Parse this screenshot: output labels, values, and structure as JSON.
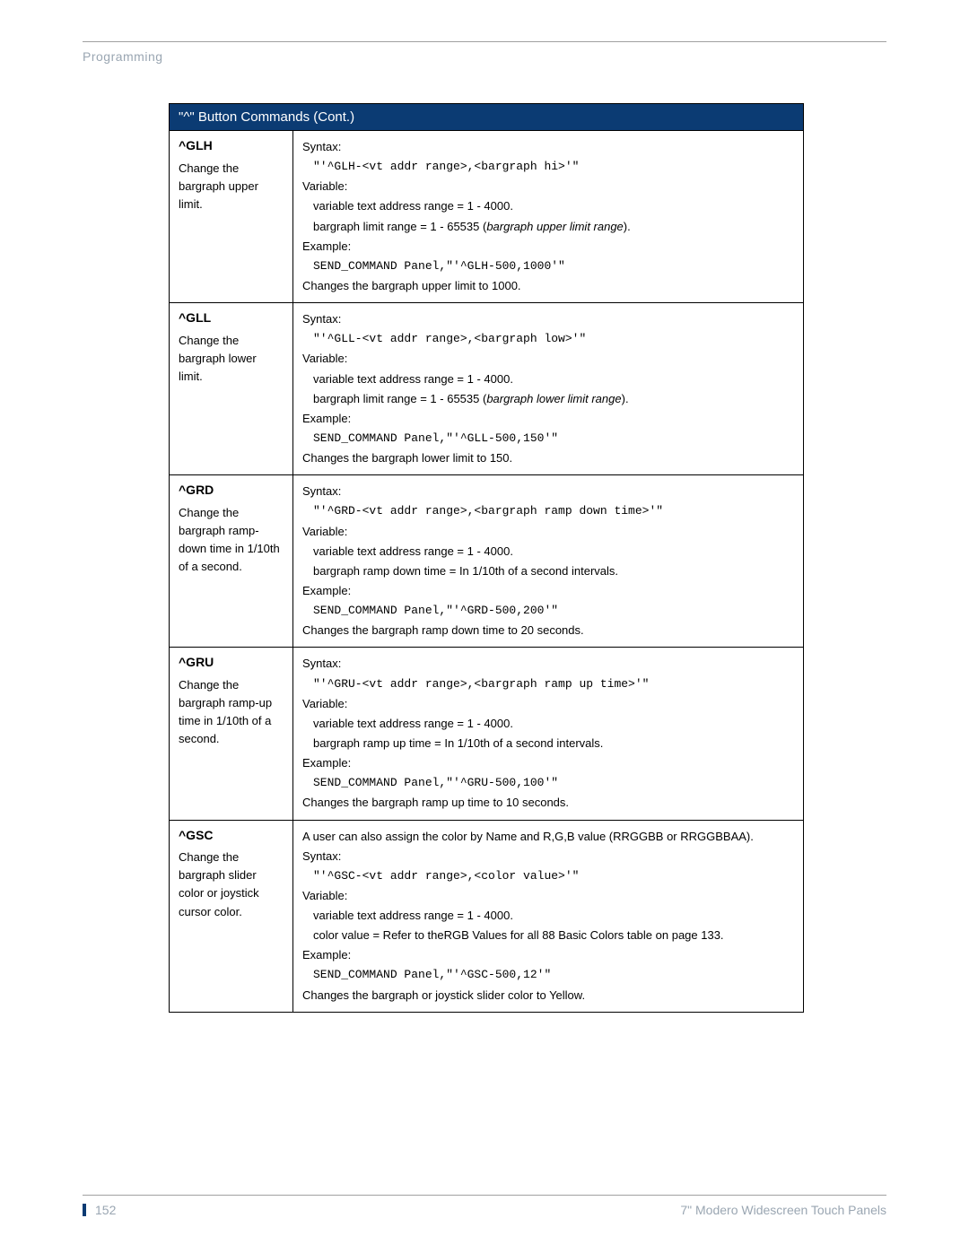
{
  "header": {
    "section_label": "Programming"
  },
  "table": {
    "header_bg": "#0b3b73",
    "header_text_color": "#ffffff",
    "border_color": "#000000",
    "title": "\"^\" Button Commands (Cont.)",
    "rows": [
      {
        "cmd": "^GLH",
        "desc": "Change the bargraph upper limit.",
        "body": [
          {
            "t": "label",
            "v": "Syntax:"
          },
          {
            "t": "mono",
            "v": "\"'^GLH-<vt addr range>,<bargraph hi>'\""
          },
          {
            "t": "label",
            "v": "Variable:"
          },
          {
            "t": "var",
            "v": "variable text address range = 1 - 4000."
          },
          {
            "t": "var_html",
            "v": "bargraph limit range = 1 - 65535 (<span class=\"ital\">bargraph upper limit range</span>)."
          },
          {
            "t": "label",
            "v": "Example:"
          },
          {
            "t": "mono",
            "v": "SEND_COMMAND Panel,\"'^GLH-500,1000'\""
          },
          {
            "t": "plain",
            "v": "Changes the bargraph upper limit to 1000."
          }
        ]
      },
      {
        "cmd": "^GLL",
        "desc": "Change the bargraph lower limit.",
        "body": [
          {
            "t": "label",
            "v": "Syntax:"
          },
          {
            "t": "mono",
            "v": "\"'^GLL-<vt addr range>,<bargraph low>'\""
          },
          {
            "t": "label",
            "v": "Variable:"
          },
          {
            "t": "var",
            "v": "variable text address range = 1 - 4000."
          },
          {
            "t": "var_html",
            "v": "bargraph limit range = 1 - 65535 (<span class=\"ital\">bargraph lower limit range</span>)."
          },
          {
            "t": "label",
            "v": "Example:"
          },
          {
            "t": "mono",
            "v": "SEND_COMMAND Panel,\"'^GLL-500,150'\""
          },
          {
            "t": "plain",
            "v": "Changes the bargraph lower limit to 150."
          }
        ]
      },
      {
        "cmd": "^GRD",
        "desc": "Change the bargraph ramp-down time in 1/10th of a second.",
        "body": [
          {
            "t": "label",
            "v": "Syntax:"
          },
          {
            "t": "mono",
            "v": "\"'^GRD-<vt addr range>,<bargraph ramp down time>'\""
          },
          {
            "t": "label",
            "v": "Variable:"
          },
          {
            "t": "var",
            "v": "variable text address range = 1 - 4000."
          },
          {
            "t": "var",
            "v": "bargraph ramp down time = In 1/10th of a second intervals."
          },
          {
            "t": "label",
            "v": "Example:"
          },
          {
            "t": "mono",
            "v": "SEND_COMMAND Panel,\"'^GRD-500,200'\""
          },
          {
            "t": "plain",
            "v": "Changes the bargraph ramp down time to 20 seconds."
          }
        ]
      },
      {
        "cmd": "^GRU",
        "desc": "Change the bargraph ramp-up time in 1/10th of a second.",
        "body": [
          {
            "t": "label",
            "v": "Syntax:"
          },
          {
            "t": "mono",
            "v": "\"'^GRU-<vt addr range>,<bargraph ramp up time>'\""
          },
          {
            "t": "label",
            "v": "Variable:"
          },
          {
            "t": "var",
            "v": "variable text address range = 1 - 4000."
          },
          {
            "t": "var",
            "v": "bargraph ramp up time = In 1/10th of a second intervals."
          },
          {
            "t": "label",
            "v": "Example:"
          },
          {
            "t": "mono",
            "v": "SEND_COMMAND Panel,\"'^GRU-500,100'\""
          },
          {
            "t": "plain",
            "v": "Changes the bargraph ramp up time to 10 seconds."
          }
        ]
      },
      {
        "cmd": "^GSC",
        "desc": "Change the bargraph slider color or joystick cursor color.",
        "body": [
          {
            "t": "plain",
            "v": "A user can also assign the color by Name and R,G,B value (RRGGBB or RRGGBBAA)."
          },
          {
            "t": "label",
            "v": "Syntax:"
          },
          {
            "t": "mono",
            "v": "\"'^GSC-<vt addr range>,<color value>'\""
          },
          {
            "t": "label",
            "v": "Variable:"
          },
          {
            "t": "var",
            "v": "variable text address range = 1 - 4000."
          },
          {
            "t": "var",
            "v": "color value = Refer to theRGB Values for all 88 Basic Colors table on page 133."
          },
          {
            "t": "label",
            "v": "Example:"
          },
          {
            "t": "mono",
            "v": "SEND_COMMAND Panel,\"'^GSC-500,12'\""
          },
          {
            "t": "plain",
            "v": "Changes the bargraph or joystick slider color to Yellow."
          }
        ]
      }
    ]
  },
  "footer": {
    "page_number": "152",
    "doc_title": "7\" Modero Widescreen Touch Panels",
    "label_color": "#9aa6b2",
    "accent_color": "#0b3b73"
  }
}
